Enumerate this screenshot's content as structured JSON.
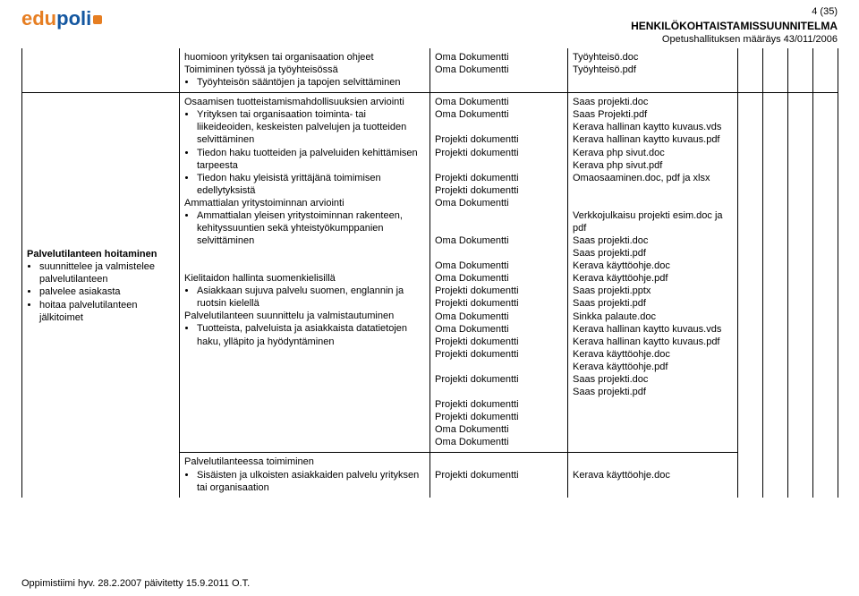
{
  "header": {
    "logo_part1": "edu",
    "logo_part2": "poli",
    "page_num": "4 (35)",
    "title1": "HENKILÖKOHTAISTAMISSUUNNITELMA",
    "title2": "Opetushallituksen määräys 43/011/2006"
  },
  "row1": {
    "col1": "",
    "col2_top": "huomioon yrityksen tai organisaation ohjeet",
    "col2_line2": "Toimiminen työssä ja työyhteisössä",
    "col2_bullets": [
      "Työyhteisön sääntöjen ja tapojen selvittäminen"
    ],
    "col3_lines": [
      "Oma Dokumentti",
      "Oma Dokumentti"
    ],
    "col4_lines": [
      "Työyhteisö.doc",
      "Työyhteisö.pdf"
    ]
  },
  "row2": {
    "col1_title": "Palvelutilanteen hoitaminen",
    "col1_bullets": [
      "suunnittelee ja valmistelee palvelutilanteen",
      "palvelee asiakasta",
      "hoitaa palvelutilanteen jälkitoimet"
    ],
    "col2_b1_line": "Osaamisen tuotteistamismahdollisuuksien arviointi",
    "col2_b1_bullets": [
      "Yrityksen tai organisaation toiminta- tai liikeideoiden, keskeisten palvelujen ja tuotteiden selvittäminen",
      "Tiedon haku tuotteiden ja palveluiden kehittämisen tarpeesta",
      "Tiedon haku yleisistä yrittäjänä toimimisen edellytyksistä"
    ],
    "col2_b2_line": "Ammattialan yritystoiminnan arviointi",
    "col2_b2_bullets": [
      "Ammattialan yleisen yritystoiminnan rakenteen, kehityssuuntien sekä yhteistyökumppanien selvittäminen"
    ],
    "col2_b3_line": "Kielitaidon hallinta suomenkielisillä",
    "col2_b3_bullets": [
      "Asiakkaan sujuva palvelu suomen, englannin ja ruotsin kielellä"
    ],
    "col2_b4_line": "Palvelutilanteen suunnittelu ja valmistautuminen",
    "col2_b4_bullets": [
      "Tuotteista, palveluista ja asiakkaista datatietojen haku, ylläpito ja hyödyntäminen"
    ],
    "col3_lines": [
      "Oma Dokumentti",
      "Oma Dokumentti",
      "",
      "Projekti dokumentti",
      "Projekti dokumentti",
      "",
      "Projekti dokumentti",
      "Projekti dokumentti",
      "Oma Dokumentti",
      "",
      "",
      "Oma Dokumentti",
      "",
      "Oma Dokumentti",
      "Oma Dokumentti",
      "Projekti dokumentti",
      "Projekti dokumentti",
      "Oma Dokumentti",
      "Oma Dokumentti",
      "Projekti dokumentti",
      "Projekti dokumentti",
      "",
      "Projekti dokumentti",
      "",
      "Projekti dokumentti",
      "Projekti dokumentti",
      "Oma Dokumentti",
      "Oma Dokumentti"
    ],
    "col4_lines": [
      "Saas projekti.doc",
      "Saas Projekti.pdf",
      "Kerava hallinan kaytto kuvaus.vds",
      "Kerava hallinan kaytto kuvaus.pdf",
      "Kerava php sivut.doc",
      "Kerava php sivut.pdf",
      "Omaosaaminen.doc, pdf ja  xlsx",
      "",
      "",
      "Verkkojulkaisu projekti esim.doc ja pdf",
      "Saas projekti.doc",
      "Saas projekti.pdf",
      "Kerava käyttöohje.doc",
      "Kerava käyttöohje.pdf",
      "Saas projekti.pptx",
      "Saas projekti.pdf",
      "Sinkka palaute.doc",
      "Kerava hallinan kaytto kuvaus.vds",
      "Kerava hallinan kaytto kuvaus.pdf",
      "Kerava käyttöohje.doc",
      "Kerava käyttöohje.pdf",
      "Saas projekti.doc",
      "Saas projekti.pdf"
    ]
  },
  "row3": {
    "col2_line": "Palvelutilanteessa toimiminen",
    "col2_bullets": [
      "Sisäisten ja ulkoisten asiakkaiden palvelu yrityksen tai organisaation"
    ],
    "col3_lines": [
      "",
      "Projekti dokumentti"
    ],
    "col4_lines": [
      "",
      "Kerava käyttöohje.doc"
    ]
  },
  "footer": "Oppimistiimi hyv. 28.2.2007 päivitetty 15.9.2011 O.T."
}
